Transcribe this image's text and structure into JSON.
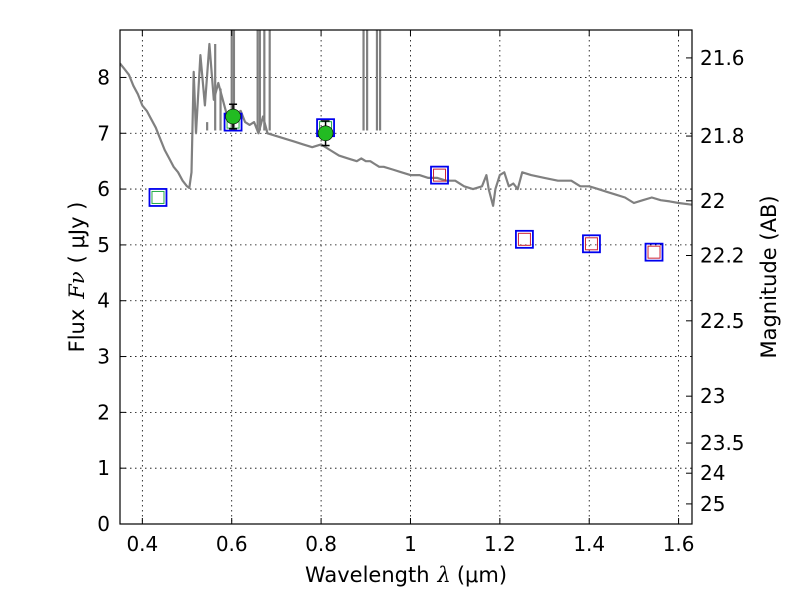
{
  "chart_data": {
    "type": "scatter",
    "xlabel_prefix": "Wavelength",
    "xlabel_symbol": "λ",
    "xlabel_unit": "(μm)",
    "ylabel_prefix": "Flux",
    "ylabel_symbol": "Fν",
    "ylabel_unit": "( μJy )",
    "y2label": "Magnitude (AB)",
    "xlim": [
      0.35,
      1.63
    ],
    "ylim": [
      0,
      8.85
    ],
    "xticks": [
      0.4,
      0.6,
      0.8,
      1.0,
      1.2,
      1.4,
      1.6
    ],
    "xtick_labels": [
      "0.4",
      "0.6",
      "0.8",
      "1",
      "1.2",
      "1.4",
      "1.6"
    ],
    "yticks": [
      0,
      1,
      2,
      3,
      4,
      5,
      6,
      7,
      8
    ],
    "ytick_labels": [
      "0",
      "1",
      "2",
      "3",
      "4",
      "5",
      "6",
      "7",
      "8"
    ],
    "y2ticks": [
      {
        "label": "21.6",
        "flux": 8.35
      },
      {
        "label": "21.8",
        "flux": 6.95
      },
      {
        "label": "22",
        "flux": 5.79
      },
      {
        "label": "22.2",
        "flux": 4.81
      },
      {
        "label": "22.5",
        "flux": 3.64
      },
      {
        "label": "23",
        "flux": 2.29
      },
      {
        "label": "23.5",
        "flux": 1.45
      },
      {
        "label": "24",
        "flux": 0.91
      },
      {
        "label": "25",
        "flux": 0.36
      }
    ],
    "grid": true,
    "colors": {
      "model": "#808080",
      "observed": "#22bb22",
      "model_box": "#0000ee",
      "optical_inner": "#22aa44",
      "nir_inner": "#cc2233",
      "errorbar": "#000000"
    },
    "series": [
      {
        "name": "model spectrum",
        "style": "line",
        "x": [
          0.35,
          0.36,
          0.37,
          0.38,
          0.39,
          0.4,
          0.41,
          0.42,
          0.43,
          0.44,
          0.45,
          0.46,
          0.47,
          0.48,
          0.49,
          0.5,
          0.505,
          0.51,
          0.515,
          0.52,
          0.53,
          0.54,
          0.55,
          0.56,
          0.57,
          0.58,
          0.59,
          0.6,
          0.61,
          0.62,
          0.63,
          0.64,
          0.65,
          0.66,
          0.67,
          0.68,
          0.7,
          0.72,
          0.74,
          0.76,
          0.78,
          0.8,
          0.82,
          0.84,
          0.86,
          0.88,
          0.89,
          0.9,
          0.91,
          0.92,
          0.93,
          0.94,
          0.96,
          0.98,
          1.0,
          1.02,
          1.04,
          1.06,
          1.08,
          1.1,
          1.12,
          1.14,
          1.16,
          1.17,
          1.175,
          1.18,
          1.185,
          1.19,
          1.2,
          1.21,
          1.22,
          1.23,
          1.24,
          1.25,
          1.27,
          1.3,
          1.33,
          1.36,
          1.38,
          1.4,
          1.42,
          1.44,
          1.46,
          1.48,
          1.5,
          1.52,
          1.54,
          1.56,
          1.58,
          1.6,
          1.63
        ],
        "y": [
          8.25,
          8.15,
          8.05,
          7.85,
          7.7,
          7.5,
          7.4,
          7.25,
          7.1,
          6.9,
          6.7,
          6.55,
          6.4,
          6.3,
          6.15,
          6.05,
          6.02,
          6.3,
          8.1,
          7.0,
          8.4,
          7.5,
          8.6,
          7.6,
          7.9,
          7.6,
          7.3,
          7.25,
          7.35,
          7.4,
          7.2,
          7.15,
          7.2,
          7.0,
          7.3,
          7.0,
          6.95,
          6.9,
          6.85,
          6.8,
          6.75,
          6.8,
          6.7,
          6.6,
          6.55,
          6.5,
          6.55,
          6.5,
          6.5,
          6.45,
          6.4,
          6.4,
          6.35,
          6.3,
          6.25,
          6.25,
          6.2,
          6.2,
          6.15,
          6.15,
          6.05,
          6.0,
          6.05,
          6.25,
          6.0,
          5.85,
          5.7,
          6.0,
          6.25,
          6.3,
          6.05,
          6.1,
          6.0,
          6.3,
          6.25,
          6.2,
          6.15,
          6.15,
          6.05,
          6.05,
          6.0,
          5.95,
          5.9,
          5.85,
          5.75,
          5.8,
          5.85,
          5.8,
          5.78,
          5.75,
          5.72
        ]
      },
      {
        "name": "model spectrum emission lines",
        "style": "spikes",
        "lines": [
          {
            "x": 0.545,
            "top": 7.2
          },
          {
            "x": 0.563,
            "top": 8.6
          },
          {
            "x": 0.575,
            "top": 7.8
          },
          {
            "x": 0.6,
            "top": 9.5
          },
          {
            "x": 0.605,
            "top": 9.5
          },
          {
            "x": 0.658,
            "top": 9.5
          },
          {
            "x": 0.663,
            "top": 9.5
          },
          {
            "x": 0.673,
            "top": 9.5
          },
          {
            "x": 0.685,
            "top": 9.5
          },
          {
            "x": 0.895,
            "top": 9.5
          },
          {
            "x": 0.903,
            "top": 9.5
          },
          {
            "x": 0.925,
            "top": 9.5
          },
          {
            "x": 0.932,
            "top": 9.5
          }
        ]
      },
      {
        "name": "model photometry optical",
        "style": "open-square",
        "inner_color": "optical_inner",
        "x": [
          0.435,
          0.603,
          0.81
        ],
        "y": [
          5.85,
          7.2,
          7.1
        ]
      },
      {
        "name": "model photometry near-IR",
        "style": "open-square",
        "inner_color": "nir_inner",
        "x": [
          1.065,
          1.255,
          1.405,
          1.545
        ],
        "y": [
          6.25,
          5.1,
          5.02,
          4.87
        ]
      },
      {
        "name": "observed photometry",
        "style": "filled-circle",
        "x": [
          0.603,
          0.81
        ],
        "y": [
          7.3,
          7.0
        ],
        "yerr": [
          0.22,
          0.22
        ]
      }
    ]
  }
}
